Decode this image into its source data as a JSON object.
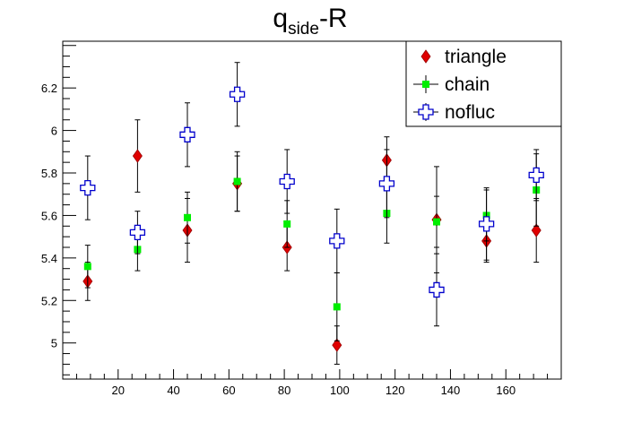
{
  "chart_data": {
    "type": "scatter",
    "title": "q",
    "title_subscript": "side",
    "title_suffix": "-R",
    "xlabel": "",
    "ylabel": "",
    "xlim": [
      0,
      180
    ],
    "ylim": [
      4.83,
      6.42
    ],
    "x_ticks": [
      20,
      40,
      60,
      80,
      100,
      120,
      140,
      160
    ],
    "x_tick_labels": [
      "20",
      "40",
      "60",
      "80",
      "100",
      "120",
      "140",
      "160"
    ],
    "y_ticks": [
      5,
      5.2,
      5.4,
      5.6,
      5.8,
      6,
      6.2
    ],
    "y_tick_labels": [
      "5",
      "5.2",
      "5.4",
      "5.6",
      "5.8",
      "6",
      "6.2"
    ],
    "grid": false,
    "legend_position": "top-right",
    "series": [
      {
        "name": "triangle",
        "marker": "diamond",
        "color": "#e00000",
        "x": [
          9,
          27,
          45,
          63,
          81,
          99,
          117,
          135,
          153,
          171
        ],
        "y": [
          5.29,
          5.88,
          5.53,
          5.75,
          5.45,
          4.99,
          5.86,
          5.58,
          5.48,
          5.53
        ],
        "err": [
          0.09,
          0.17,
          0.15,
          0.13,
          0.11,
          0.09,
          0.11,
          0.25,
          0.1,
          0.15
        ]
      },
      {
        "name": "chain",
        "marker": "square",
        "color": "#00ee00",
        "x": [
          9,
          27,
          45,
          63,
          81,
          99,
          117,
          135,
          153,
          171
        ],
        "y": [
          5.36,
          5.44,
          5.59,
          5.76,
          5.56,
          5.17,
          5.61,
          5.57,
          5.6,
          5.72
        ],
        "err": [
          0.1,
          0.1,
          0.12,
          0.14,
          0.11,
          0.16,
          0.14,
          0.12,
          0.12,
          0.17
        ]
      },
      {
        "name": "nofluc",
        "marker": "open-cross",
        "color": "#0000cc",
        "x": [
          9,
          27,
          45,
          63,
          81,
          99,
          117,
          135,
          153,
          171
        ],
        "y": [
          5.73,
          5.52,
          5.98,
          6.17,
          5.76,
          5.48,
          5.75,
          5.25,
          5.56,
          5.79
        ],
        "err": [
          0.15,
          0.1,
          0.15,
          0.15,
          0.15,
          0.15,
          0.16,
          0.17,
          0.17,
          0.12
        ]
      }
    ]
  }
}
